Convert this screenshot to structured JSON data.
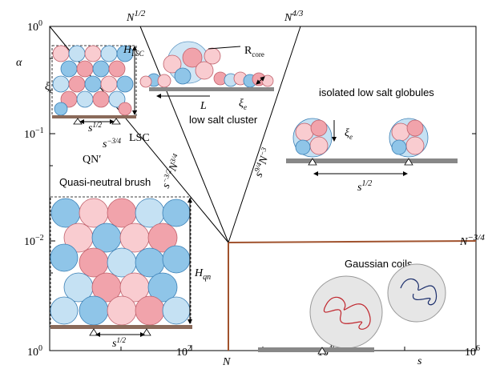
{
  "axes": {
    "x_ticks": [
      {
        "base": "10",
        "exp": "0"
      },
      {
        "base": "10",
        "exp": "2"
      },
      {
        "base": "10",
        "exp": "4"
      },
      {
        "base": "10",
        "exp": "6"
      }
    ],
    "y_ticks": [
      {
        "base": "10",
        "exp": "0"
      },
      {
        "base": "10",
        "exp": "−1"
      },
      {
        "base": "10",
        "exp": "−2"
      }
    ],
    "x_label": "s",
    "y_label": "α",
    "x_mark": "N"
  },
  "boundaries": {
    "top_left": {
      "base": "N",
      "exp": "1/2"
    },
    "top_right": {
      "base": "N",
      "exp": "4/3"
    },
    "right": {
      "base": "N",
      "exp": "−3/4"
    },
    "qn_lsc": {
      "base": "s",
      "exp": "−3/4"
    },
    "lsc_cluster": {
      "base": "s",
      "exp": "−3/2",
      "base2": "N",
      "exp2": "3/4"
    },
    "cluster_globules": {
      "base": "s",
      "exp": "9/4",
      "base2": "N",
      "exp2": "−3"
    }
  },
  "regions": {
    "lsc": "LSC",
    "qn": "QN′",
    "qn_name": "Quasi-neutral brush",
    "cluster": "low salt cluster",
    "globules": "isolated low salt globules",
    "gaussian": "Gaussian coils"
  },
  "insets": {
    "h_lsc": {
      "base": "H",
      "sub": "LSC"
    },
    "xi_left": {
      "base": "ξ",
      "sub": "e"
    },
    "s_left_top": {
      "base": "s",
      "exp": "1/2"
    },
    "r_core": {
      "base": "R",
      "sub": "core"
    },
    "l": "L",
    "xi_cluster": {
      "base": "ξ",
      "sub": "e"
    },
    "xi_globule": {
      "base": "ξ",
      "sub": "e"
    },
    "s_globule": {
      "base": "s",
      "exp": "1/2"
    },
    "h_qn": {
      "base": "H",
      "sub": "qn"
    },
    "s_qn": {
      "base": "s",
      "exp": "1/2"
    }
  }
}
